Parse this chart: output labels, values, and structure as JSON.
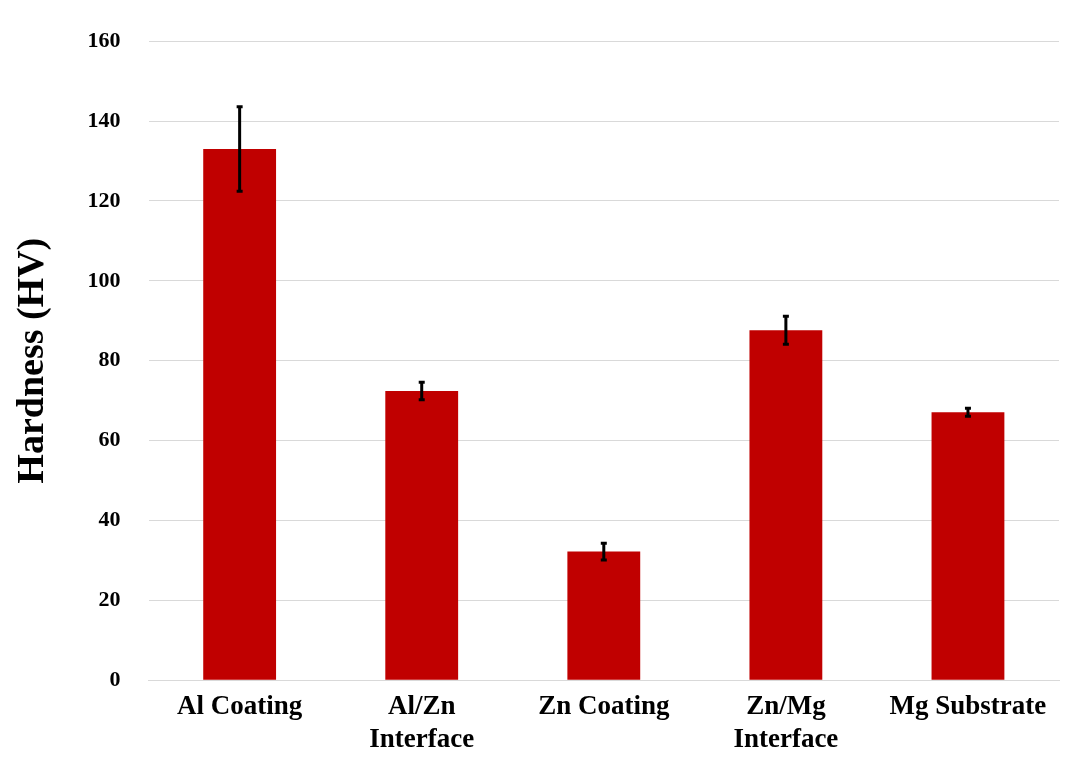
{
  "chart_data": {
    "type": "bar",
    "ylabel": "Hardness (HV)",
    "categories": [
      "Al Coating",
      "Al/Zn\nInterface",
      "Zn Coating",
      "Zn/Mg\nInterface",
      "Mg Substrate"
    ],
    "values": [
      133,
      72.4,
      32.2,
      87.6,
      67.1
    ],
    "errors": [
      10.6,
      2.2,
      2.1,
      3.5,
      1
    ],
    "color": "#c00000",
    "ylim": [
      0,
      160
    ],
    "yticks": [
      0,
      20,
      40,
      60,
      80,
      100,
      120,
      140,
      160
    ],
    "grid": "y",
    "legend": false
  }
}
